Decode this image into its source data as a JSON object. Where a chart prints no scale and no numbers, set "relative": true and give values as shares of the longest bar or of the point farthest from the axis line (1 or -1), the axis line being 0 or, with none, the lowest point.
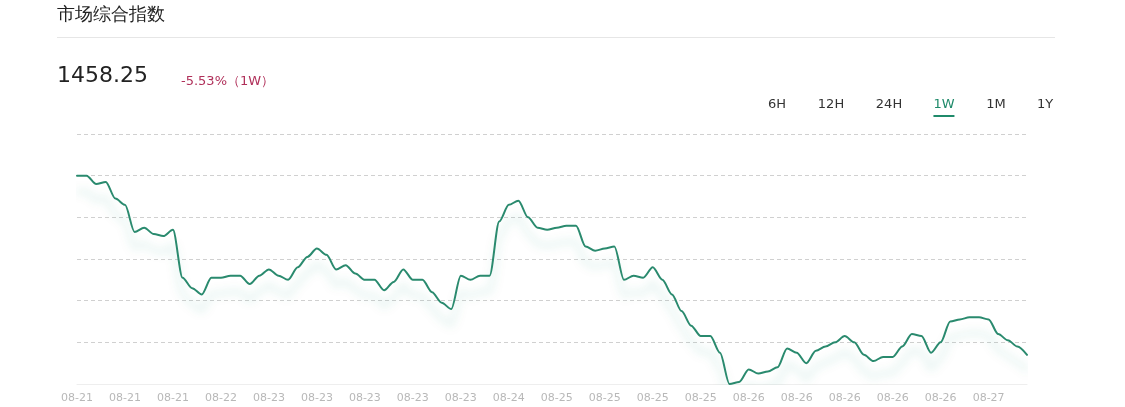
{
  "chart_data": {
    "type": "line",
    "title": "市场综合指数",
    "annotations": [
      "1458.25",
      "-5.53%（1W）",
      "6H",
      "12H",
      "24H",
      "1W",
      "1M",
      "1Y"
    ],
    "categories": [
      "08-21",
      null,
      null,
      null,
      null,
      "08-21",
      null,
      null,
      null,
      null,
      "08-21",
      null,
      null,
      null,
      null,
      "08-22",
      null,
      null,
      null,
      null,
      "08-23",
      null,
      null,
      null,
      null,
      "08-23",
      null,
      null,
      null,
      null,
      "08-23",
      null,
      null,
      null,
      null,
      "08-23",
      null,
      null,
      null,
      null,
      "08-23",
      null,
      null,
      null,
      null,
      "08-24",
      null,
      null,
      null,
      null,
      "08-25",
      null,
      null,
      null,
      null,
      "08-25",
      null,
      null,
      null,
      null,
      "08-25",
      null,
      null,
      null,
      null,
      "08-25",
      null,
      null,
      null,
      null,
      "08-26",
      null,
      null,
      null,
      null,
      "08-26",
      null,
      null,
      null,
      null,
      "08-26",
      null,
      null,
      null,
      null,
      "08-26",
      null,
      null,
      null,
      null,
      "08-26",
      null,
      null,
      null,
      null,
      "08-27",
      null,
      null,
      null,
      null
    ],
    "series": [
      {
        "color": "#2a8a6e",
        "values": [
          1,
          1,
          0.96,
          0.97,
          0.89,
          0.86,
          0.73,
          0.75,
          0.72,
          0.71,
          0.74,
          0.51,
          0.46,
          0.43,
          0.51,
          0.51,
          0.52,
          0.52,
          0.48,
          0.52,
          0.55,
          0.52,
          0.5,
          0.56,
          0.61,
          0.65,
          0.62,
          0.55,
          0.57,
          0.53,
          0.5,
          0.5,
          0.45,
          0.49,
          0.55,
          0.5,
          0.5,
          0.44,
          0.39,
          0.36,
          0.52,
          0.5,
          0.52,
          0.52,
          0.78,
          0.86,
          0.88,
          0.8,
          0.75,
          0.74,
          0.75,
          0.76,
          0.76,
          0.66,
          0.64,
          0.65,
          0.66,
          0.5,
          0.52,
          0.51,
          0.56,
          0.5,
          0.43,
          0.35,
          0.28,
          0.23,
          0.23,
          0.15,
          0,
          0.01,
          0.07,
          0.05,
          0.06,
          0.08,
          0.17,
          0.15,
          0.1,
          0.16,
          0.18,
          0.2,
          0.23,
          0.2,
          0.14,
          0.11,
          0.13,
          0.13,
          0.18,
          0.24,
          0.23,
          0.15,
          0.2,
          0.3,
          0.31,
          0.32,
          0.32,
          0.31,
          0.24,
          0.21,
          0.18,
          0.14
        ]
      }
    ],
    "relative": true,
    "grid": "y",
    "marker": "none",
    "line_style": "solid"
  }
}
